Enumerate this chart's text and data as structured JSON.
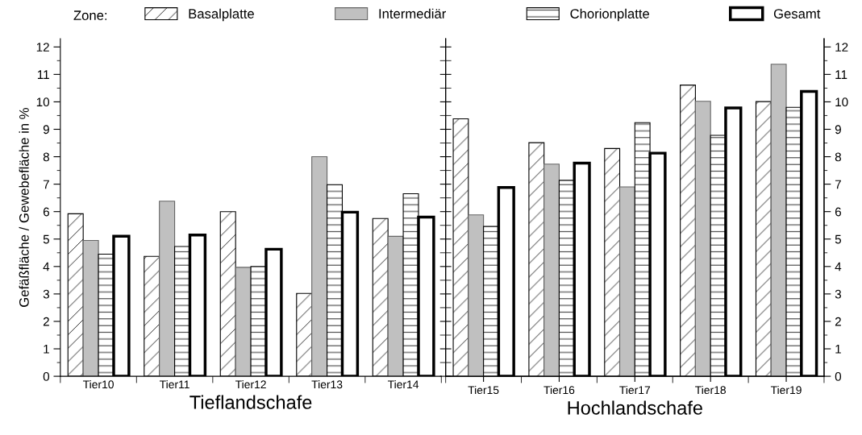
{
  "chart_data": [
    {
      "type": "bar",
      "legend_title": "Zone:",
      "legend": "top",
      "xlabel": "Tieflandschafe",
      "ylabel": "Gefäßfläche / Gewebefläche in %",
      "categories": [
        "Tier10",
        "Tier11",
        "Tier12",
        "Tier13",
        "Tier14"
      ],
      "ylim": [
        0,
        12.3
      ],
      "yticks": [
        0,
        1,
        2,
        3,
        4,
        5,
        6,
        7,
        8,
        9,
        10,
        11,
        12
      ],
      "grid": false,
      "series": [
        {
          "name": "Basalplatte",
          "color": "#000000",
          "values": [
            5.92,
            4.37,
            6.0,
            3.02,
            5.75
          ]
        },
        {
          "name": "Intermediär",
          "color": "#c0c0c0",
          "values": [
            4.95,
            6.38,
            3.97,
            8.0,
            5.1
          ]
        },
        {
          "name": "Chorionplatte",
          "color": "#000000",
          "values": [
            4.45,
            4.73,
            4.0,
            6.98,
            6.65
          ]
        },
        {
          "name": "Gesamt",
          "color": "#ffffff",
          "values": [
            5.1,
            5.15,
            4.63,
            5.98,
            5.8
          ]
        }
      ]
    },
    {
      "type": "bar",
      "xlabel": "Hochlandschafe",
      "grid": false,
      "categories": [
        "Tier15",
        "Tier16",
        "Tier17",
        "Tier18",
        "Tier19"
      ],
      "y2lim": [
        0,
        12.3
      ],
      "y2ticks": [
        0,
        1,
        2,
        3,
        4,
        5,
        6,
        7,
        8,
        9,
        10,
        11,
        12
      ],
      "series": [
        {
          "color": "#000000",
          "axis": "y2",
          "values": [
            9.38,
            8.51,
            8.3,
            10.61,
            10.01
          ]
        },
        {
          "color": "#c0c0c0",
          "axis": "y2",
          "values": [
            5.88,
            7.73,
            6.9,
            10.02,
            11.37
          ]
        },
        {
          "color": "#000000",
          "axis": "y2",
          "values": [
            5.46,
            7.14,
            9.24,
            8.78,
            9.8
          ]
        },
        {
          "color": "#ffffff",
          "axis": "y2",
          "values": [
            6.88,
            7.77,
            8.13,
            9.78,
            10.38
          ]
        }
      ]
    }
  ]
}
